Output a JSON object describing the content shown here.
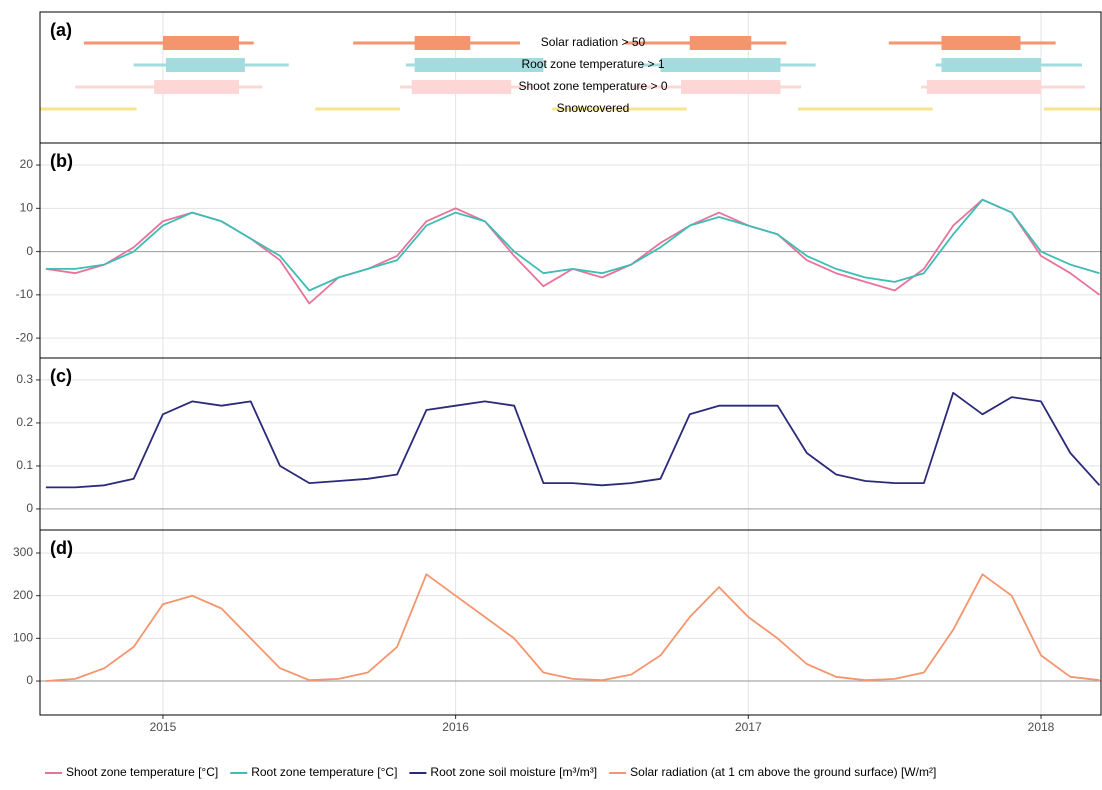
{
  "chart_data": [
    {
      "type": "timeline",
      "label": "(a)",
      "xlim": [
        2014.58,
        2018.205
      ],
      "xticks": [
        2015,
        2016,
        2017,
        2018
      ],
      "rows": [
        {
          "name": "Solar radiation > 50",
          "color": "#f4956e",
          "range": [
            [
              2014.73,
              2015.31
            ],
            [
              2015.65,
              2016.22
            ],
            [
              2016.58,
              2017.13
            ],
            [
              2017.48,
              2018.05
            ]
          ],
          "core": [
            [
              2015.0,
              2015.26
            ],
            [
              2015.86,
              2016.05
            ],
            [
              2016.8,
              2017.01
            ],
            [
              2017.66,
              2017.93
            ]
          ]
        },
        {
          "name": "Root zone temperature > 1",
          "color": "#a3dcdf",
          "range": [
            [
              2014.9,
              2015.43
            ],
            [
              2015.83,
              2016.31
            ],
            [
              2016.63,
              2017.23
            ],
            [
              2017.64,
              2018.14
            ]
          ],
          "core": [
            [
              2015.01,
              2015.28
            ],
            [
              2015.86,
              2016.3
            ],
            [
              2016.7,
              2017.11
            ],
            [
              2017.66,
              2018.0
            ]
          ]
        },
        {
          "name": "Shoot zone temperature > 0",
          "color": "#fcd7d6",
          "range": [
            [
              2014.7,
              2015.34
            ],
            [
              2015.81,
              2016.26
            ],
            [
              2016.6,
              2017.18
            ],
            [
              2017.59,
              2018.15
            ]
          ],
          "core": [
            [
              2014.97,
              2015.26
            ],
            [
              2015.85,
              2016.19
            ],
            [
              2016.77,
              2017.11
            ],
            [
              2017.61,
              2018.0
            ]
          ]
        },
        {
          "name": "Snowcovered",
          "color": "#f6e58d",
          "range": [
            [
              2014.58,
              2014.91
            ],
            [
              2015.52,
              2015.81
            ],
            [
              2016.33,
              2016.79
            ],
            [
              2017.17,
              2017.63
            ],
            [
              2018.01,
              2018.205
            ]
          ],
          "core": []
        }
      ]
    },
    {
      "type": "line",
      "label": "(b)",
      "xlim": [
        2014.58,
        2018.205
      ],
      "xticks": [
        2015,
        2016,
        2017,
        2018
      ],
      "ylim": [
        -24.6,
        25.1
      ],
      "yticks": [
        -20,
        -10,
        0,
        10,
        20
      ],
      "hline": 0,
      "x": [
        2014.6,
        2014.7,
        2014.8,
        2014.9,
        2015.0,
        2015.1,
        2015.2,
        2015.3,
        2015.4,
        2015.5,
        2015.6,
        2015.7,
        2015.8,
        2015.9,
        2016.0,
        2016.1,
        2016.2,
        2016.3,
        2016.4,
        2016.5,
        2016.6,
        2016.7,
        2016.8,
        2016.9,
        2017.0,
        2017.1,
        2017.2,
        2017.3,
        2017.4,
        2017.5,
        2017.6,
        2017.7,
        2017.8,
        2017.9,
        2018.0,
        2018.1,
        2018.2
      ],
      "series": [
        {
          "name": "Shoot zone temperature [°C]",
          "color": "#e8739a",
          "values": [
            -4,
            -5,
            -3,
            1,
            7,
            9,
            7,
            3,
            -2,
            -12,
            -6,
            -4,
            -1,
            7,
            10,
            7,
            -1,
            -8,
            -4,
            -6,
            -3,
            2,
            6,
            9,
            6,
            4,
            -2,
            -5,
            -7,
            -9,
            -4,
            6,
            12,
            9,
            -1,
            -5,
            -10
          ]
        },
        {
          "name": "Root zone temperature [°C]",
          "color": "#3dbdb5",
          "values": [
            -4,
            -4,
            -3,
            0,
            6,
            9,
            7,
            3,
            -1,
            -9,
            -6,
            -4,
            -2,
            6,
            9,
            7,
            0,
            -5,
            -4,
            -5,
            -3,
            1,
            6,
            8,
            6,
            4,
            -1,
            -4,
            -6,
            -7,
            -5,
            4,
            12,
            9,
            0,
            -3,
            -5
          ]
        }
      ]
    },
    {
      "type": "line",
      "label": "(c)",
      "xlim": [
        2014.58,
        2018.205
      ],
      "xticks": [
        2015,
        2016,
        2017,
        2018
      ],
      "ylim": [
        -0.049,
        0.351
      ],
      "yticks": [
        0,
        0.1,
        0.2,
        0.3
      ],
      "hline": 0,
      "x": [
        2014.6,
        2014.7,
        2014.8,
        2014.9,
        2015.0,
        2015.1,
        2015.2,
        2015.3,
        2015.4,
        2015.5,
        2015.6,
        2015.7,
        2015.8,
        2015.9,
        2016.0,
        2016.1,
        2016.2,
        2016.3,
        2016.4,
        2016.5,
        2016.6,
        2016.7,
        2016.8,
        2016.9,
        2017.0,
        2017.1,
        2017.2,
        2017.3,
        2017.4,
        2017.5,
        2017.6,
        2017.7,
        2017.8,
        2017.9,
        2018.0,
        2018.1,
        2018.2
      ],
      "series": [
        {
          "name": "Root zone soil moisture [m³/m³]",
          "color": "#2b2a7a",
          "values": [
            0.05,
            0.05,
            0.055,
            0.07,
            0.22,
            0.25,
            0.24,
            0.25,
            0.1,
            0.06,
            0.065,
            0.07,
            0.08,
            0.23,
            0.24,
            0.25,
            0.24,
            0.06,
            0.06,
            0.055,
            0.06,
            0.07,
            0.22,
            0.24,
            0.24,
            0.24,
            0.13,
            0.08,
            0.065,
            0.06,
            0.06,
            0.27,
            0.22,
            0.26,
            0.25,
            0.13,
            0.055
          ]
        }
      ]
    },
    {
      "type": "line",
      "label": "(d)",
      "xlim": [
        2014.58,
        2018.205
      ],
      "xticks": [
        2015,
        2016,
        2017,
        2018
      ],
      "xtick_labels": true,
      "ylim": [
        -79.6,
        353.9
      ],
      "yticks": [
        0,
        100,
        200,
        300
      ],
      "hline": 0,
      "x": [
        2014.6,
        2014.7,
        2014.8,
        2014.9,
        2015.0,
        2015.1,
        2015.2,
        2015.3,
        2015.4,
        2015.5,
        2015.6,
        2015.7,
        2015.8,
        2015.9,
        2016.0,
        2016.1,
        2016.2,
        2016.3,
        2016.4,
        2016.5,
        2016.6,
        2016.7,
        2016.8,
        2016.9,
        2017.0,
        2017.1,
        2017.2,
        2017.3,
        2017.4,
        2017.5,
        2017.6,
        2017.7,
        2017.8,
        2017.9,
        2018.0,
        2018.1,
        2018.2
      ],
      "series": [
        {
          "name": "Solar radiation (at 1 cm above the ground surface) [W/m²]",
          "color": "#f4956e",
          "values": [
            0,
            5,
            30,
            80,
            180,
            200,
            170,
            100,
            30,
            2,
            5,
            20,
            80,
            250,
            200,
            150,
            100,
            20,
            5,
            2,
            15,
            60,
            150,
            220,
            150,
            100,
            40,
            10,
            2,
            5,
            20,
            120,
            250,
            200,
            60,
            10,
            2
          ]
        }
      ]
    }
  ]
}
